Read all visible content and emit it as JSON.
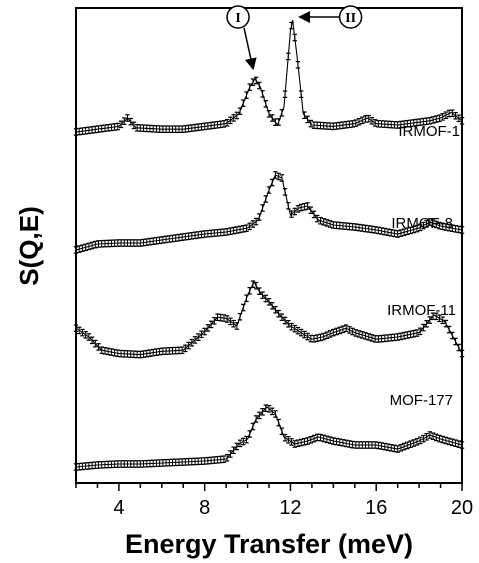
{
  "chart_data": {
    "type": "line",
    "title": "",
    "xlabel": "Energy Transfer (meV)",
    "ylabel": "S(Q,E)",
    "xlim": [
      2,
      20
    ],
    "xticks": [
      4,
      8,
      12,
      16,
      20
    ],
    "y_tick_labels": "none",
    "grid": false,
    "legend": "none",
    "marker": "error-bar",
    "color": "#000000",
    "stacking": "vertically offset curves",
    "peak_markers": [
      {
        "label": "I",
        "x": 10.35,
        "series": "IRMOF-1"
      },
      {
        "label": "II",
        "x": 12.1,
        "series": "IRMOF-1"
      }
    ],
    "series": [
      {
        "name": "IRMOF-1",
        "points": [
          [
            2,
            0.2
          ],
          [
            3,
            0.22
          ],
          [
            4,
            0.24
          ],
          [
            4.4,
            0.3
          ],
          [
            4.8,
            0.23
          ],
          [
            6,
            0.22
          ],
          [
            7,
            0.22
          ],
          [
            8,
            0.24
          ],
          [
            9,
            0.26
          ],
          [
            9.6,
            0.33
          ],
          [
            10.1,
            0.52
          ],
          [
            10.35,
            0.58
          ],
          [
            10.6,
            0.52
          ],
          [
            11,
            0.33
          ],
          [
            11.4,
            0.25
          ],
          [
            11.7,
            0.38
          ],
          [
            12.0,
            0.92
          ],
          [
            12.1,
            1.0
          ],
          [
            12.3,
            0.75
          ],
          [
            12.6,
            0.33
          ],
          [
            13,
            0.25
          ],
          [
            14,
            0.24
          ],
          [
            15,
            0.26
          ],
          [
            15.6,
            0.3
          ],
          [
            16,
            0.26
          ],
          [
            17,
            0.25
          ],
          [
            18,
            0.27
          ],
          [
            18.5,
            0.28
          ],
          [
            19,
            0.3
          ],
          [
            19.5,
            0.34
          ],
          [
            20,
            0.28
          ]
        ]
      },
      {
        "name": "IRMOF-8",
        "points": [
          [
            2,
            0.2
          ],
          [
            3,
            0.26
          ],
          [
            4,
            0.27
          ],
          [
            5,
            0.27
          ],
          [
            6,
            0.3
          ],
          [
            7,
            0.33
          ],
          [
            8,
            0.36
          ],
          [
            9,
            0.38
          ],
          [
            10,
            0.42
          ],
          [
            10.5,
            0.5
          ],
          [
            11,
            0.8
          ],
          [
            11.3,
            0.95
          ],
          [
            11.6,
            0.92
          ],
          [
            12,
            0.55
          ],
          [
            12.4,
            0.62
          ],
          [
            12.8,
            0.64
          ],
          [
            13.3,
            0.5
          ],
          [
            14,
            0.45
          ],
          [
            15,
            0.43
          ],
          [
            16,
            0.4
          ],
          [
            17,
            0.36
          ],
          [
            18,
            0.42
          ],
          [
            18.5,
            0.48
          ],
          [
            19,
            0.44
          ],
          [
            20,
            0.4
          ]
        ]
      },
      {
        "name": "IRMOF-11",
        "points": [
          [
            2,
            0.38
          ],
          [
            2.6,
            0.3
          ],
          [
            3.2,
            0.18
          ],
          [
            4,
            0.15
          ],
          [
            5,
            0.14
          ],
          [
            6,
            0.17
          ],
          [
            7,
            0.18
          ],
          [
            8,
            0.35
          ],
          [
            8.6,
            0.48
          ],
          [
            9.0,
            0.47
          ],
          [
            9.5,
            0.4
          ],
          [
            10,
            0.68
          ],
          [
            10.3,
            0.8
          ],
          [
            10.6,
            0.7
          ],
          [
            11,
            0.62
          ],
          [
            11.5,
            0.5
          ],
          [
            12,
            0.4
          ],
          [
            12.5,
            0.34
          ],
          [
            13,
            0.28
          ],
          [
            13.5,
            0.3
          ],
          [
            14,
            0.34
          ],
          [
            14.6,
            0.38
          ],
          [
            15,
            0.34
          ],
          [
            16,
            0.28
          ],
          [
            17,
            0.3
          ],
          [
            18,
            0.34
          ],
          [
            18.7,
            0.5
          ],
          [
            19.2,
            0.44
          ],
          [
            20,
            0.15
          ]
        ]
      },
      {
        "name": "MOF-177",
        "points": [
          [
            2,
            0.02
          ],
          [
            3,
            0.04
          ],
          [
            4,
            0.05
          ],
          [
            5,
            0.05
          ],
          [
            6,
            0.06
          ],
          [
            7,
            0.07
          ],
          [
            8,
            0.08
          ],
          [
            9,
            0.1
          ],
          [
            9.6,
            0.25
          ],
          [
            10,
            0.3
          ],
          [
            10.4,
            0.5
          ],
          [
            10.9,
            0.62
          ],
          [
            11.3,
            0.55
          ],
          [
            11.7,
            0.32
          ],
          [
            12.2,
            0.25
          ],
          [
            12.8,
            0.28
          ],
          [
            13.3,
            0.32
          ],
          [
            14,
            0.28
          ],
          [
            15,
            0.24
          ],
          [
            16,
            0.24
          ],
          [
            17,
            0.2
          ],
          [
            18,
            0.28
          ],
          [
            18.5,
            0.34
          ],
          [
            19,
            0.3
          ],
          [
            20,
            0.24
          ]
        ]
      }
    ]
  }
}
